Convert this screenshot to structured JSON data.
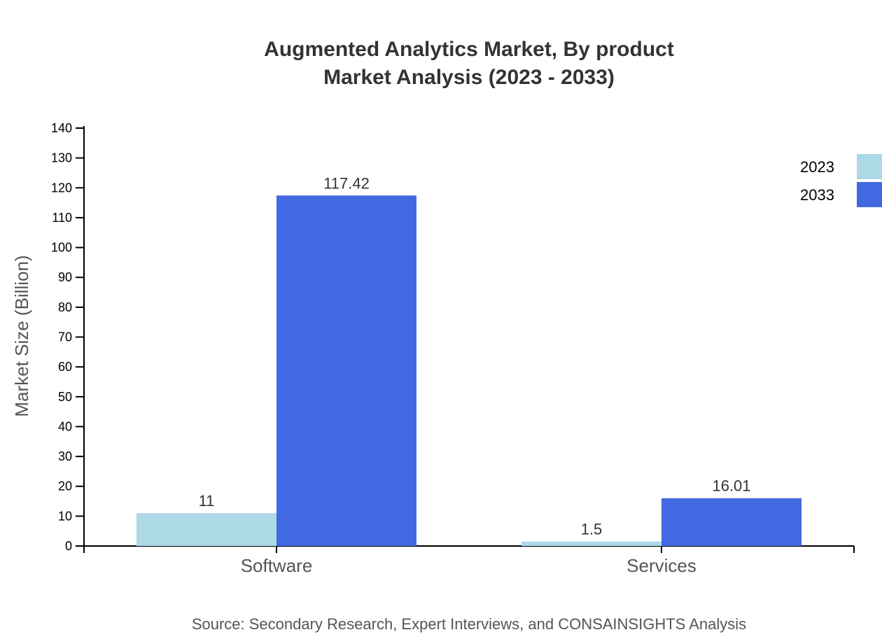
{
  "chart_data": {
    "type": "bar",
    "title": "Augmented Analytics Market, By product",
    "subtitle": "Market Analysis (2023 - 2033)",
    "xlabel": "",
    "ylabel": "Market Size (Billion)",
    "ylim": [
      0,
      140
    ],
    "yticks": [
      0,
      10,
      20,
      30,
      40,
      50,
      60,
      70,
      80,
      90,
      100,
      110,
      120,
      130,
      140
    ],
    "categories": [
      "Software",
      "Services"
    ],
    "series": [
      {
        "name": "2023",
        "values": [
          11,
          1.5
        ],
        "labels": [
          "11",
          "1.5"
        ],
        "color": "#add8e6"
      },
      {
        "name": "2033",
        "values": [
          117.42,
          16.01
        ],
        "labels": [
          "117.42",
          "16.01"
        ],
        "color": "#4169e1"
      }
    ],
    "grid": false,
    "legend": "top-right",
    "source": "Source: Secondary Research, Expert Interviews, and CONSAINSIGHTS Analysis"
  }
}
